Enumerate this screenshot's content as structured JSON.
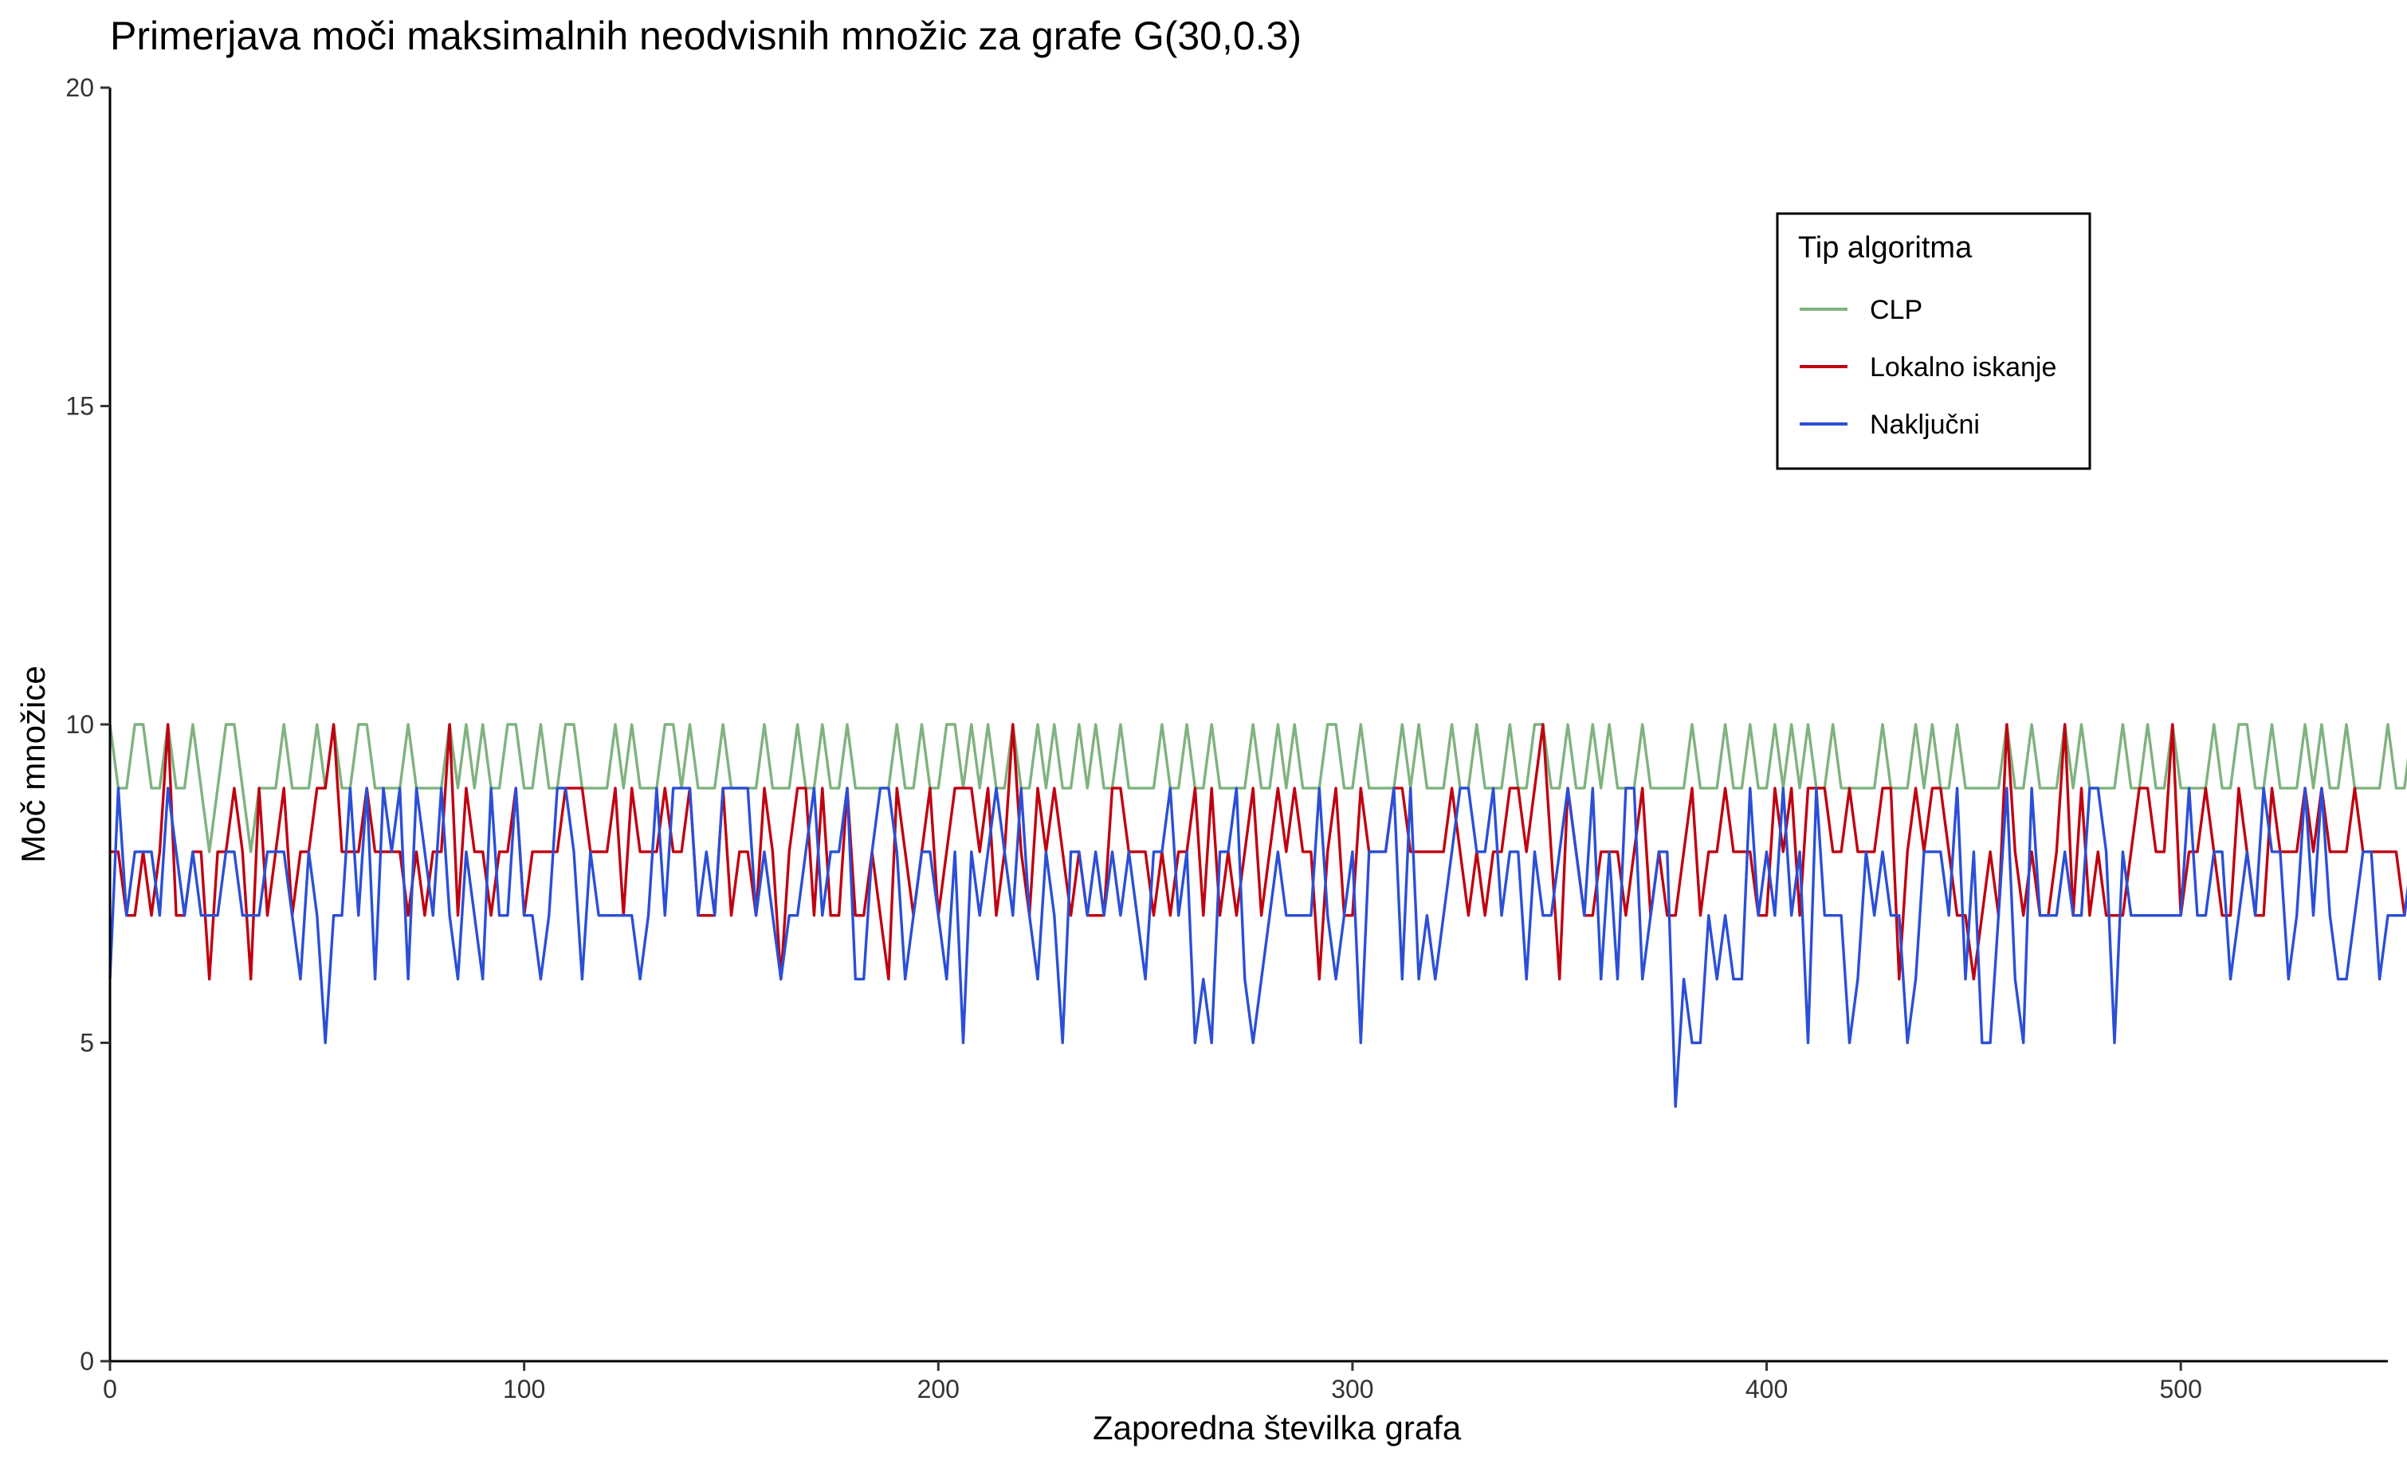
{
  "chart_data": {
    "type": "line",
    "title": "Primerjava moči maksimalnih neodvisnih množic za grafe G(30,0.3)",
    "xlabel": "Zaporedna številka grafa",
    "ylabel": "Moč množice",
    "xlim": [
      0,
      550
    ],
    "ylim": [
      0,
      20
    ],
    "x_ticks": [
      0,
      100,
      200,
      300,
      400,
      500
    ],
    "y_ticks": [
      0,
      5,
      10,
      15,
      20
    ],
    "x_tick_labels": [
      "0",
      "100",
      "200",
      "300",
      "400",
      "500"
    ],
    "y_tick_labels": [
      "0",
      "5",
      "10",
      "15",
      "20"
    ],
    "grid": false,
    "legend": {
      "title": "Tip algoritma",
      "position": "top-right"
    },
    "x_start": 0,
    "x_step": 2,
    "series": [
      {
        "name": "CLP",
        "color": "#7fb27f",
        "values": [
          10,
          9,
          9,
          10,
          10,
          9,
          9,
          10,
          9,
          9,
          10,
          9,
          8,
          9,
          10,
          10,
          9,
          8,
          9,
          9,
          9,
          10,
          9,
          9,
          9,
          10,
          9,
          10,
          9,
          9,
          10,
          10,
          9,
          9,
          9,
          9,
          10,
          9,
          9,
          9,
          9,
          10,
          9,
          10,
          9,
          10,
          9,
          9,
          10,
          10,
          9,
          9,
          10,
          9,
          9,
          10,
          10,
          9,
          9,
          9,
          9,
          10,
          9,
          10,
          9,
          9,
          9,
          10,
          10,
          9,
          10,
          9,
          9,
          9,
          10,
          9,
          9,
          9,
          9,
          10,
          9,
          9,
          9,
          10,
          9,
          9,
          10,
          9,
          9,
          10,
          9,
          9,
          9,
          9,
          9,
          10,
          9,
          9,
          10,
          9,
          9,
          10,
          10,
          9,
          10,
          9,
          10,
          9,
          9,
          10,
          9,
          9,
          10,
          9,
          10,
          9,
          9,
          10,
          9,
          10,
          9,
          9,
          10,
          9,
          9,
          9,
          9,
          10,
          9,
          9,
          10,
          9,
          9,
          10,
          9,
          9,
          9,
          9,
          10,
          9,
          9,
          10,
          9,
          10,
          9,
          9,
          9,
          10,
          10,
          9,
          9,
          10,
          9,
          9,
          9,
          9,
          10,
          9,
          10,
          9,
          9,
          9,
          10,
          9,
          9,
          10,
          9,
          9,
          9,
          10,
          9,
          9,
          10,
          10,
          9,
          9,
          10,
          9,
          9,
          10,
          9,
          10,
          9,
          9,
          9,
          10,
          9,
          9,
          9,
          9,
          9,
          10,
          9,
          9,
          9,
          10,
          9,
          9,
          10,
          9,
          9,
          10,
          9,
          10,
          9,
          10,
          9,
          9,
          10,
          9,
          9,
          9,
          9,
          9,
          10,
          9,
          9,
          9,
          10,
          9,
          10,
          9,
          9,
          10,
          9,
          9,
          9,
          9,
          9,
          10,
          9,
          9,
          10,
          9,
          9,
          9,
          10,
          9,
          10,
          9,
          9,
          9,
          9,
          10,
          9,
          9,
          10,
          9,
          9,
          10,
          9,
          9,
          9,
          9,
          10,
          9,
          9,
          10,
          10,
          9,
          9,
          10,
          9,
          9,
          9,
          10,
          9,
          10,
          9,
          9,
          10,
          9,
          9,
          9,
          9,
          10,
          9,
          9,
          10,
          9,
          9,
          9,
          10,
          9,
          9,
          9,
          9,
          10,
          9,
          9,
          10,
          9,
          9,
          10,
          9,
          9,
          9,
          10,
          10,
          9,
          9,
          10,
          9,
          9,
          9,
          9,
          9,
          10,
          9,
          9,
          10,
          9,
          9,
          9,
          9,
          10,
          9,
          9,
          10,
          10,
          9,
          9,
          10,
          9,
          9,
          9,
          10,
          9,
          9,
          9,
          9,
          10,
          9,
          9,
          10,
          9,
          9,
          9,
          10,
          9,
          9,
          10,
          9,
          9,
          9,
          9,
          10,
          9,
          9,
          10,
          9,
          10,
          9,
          9,
          9,
          10,
          9,
          9,
          9,
          10,
          9,
          9,
          10,
          9,
          9,
          9,
          10,
          9,
          10,
          9,
          9,
          9,
          10,
          9,
          9,
          10,
          10,
          9,
          9,
          9,
          9,
          10,
          9,
          9,
          10,
          9,
          9,
          9,
          9,
          10,
          9,
          9,
          10,
          9,
          9,
          10,
          9,
          9,
          10,
          9,
          9,
          10,
          9,
          9,
          9,
          9,
          10,
          9,
          9,
          10,
          9,
          9,
          9,
          10,
          9,
          9,
          10,
          10,
          9,
          9,
          9,
          10,
          9,
          9,
          10,
          9,
          9,
          9,
          9,
          10,
          9,
          9,
          10,
          10,
          9,
          9,
          10,
          9,
          9,
          10,
          9,
          9,
          9,
          9,
          10,
          9,
          10,
          9,
          9,
          9,
          10,
          9,
          9,
          10,
          9,
          9,
          10,
          9,
          9,
          9,
          10,
          9,
          10,
          9,
          9,
          10,
          9,
          9,
          9,
          9,
          9,
          10,
          9,
          9,
          9,
          10,
          9,
          9,
          10,
          9,
          9,
          10,
          9,
          9,
          9,
          10,
          10,
          9,
          9,
          10,
          9,
          9,
          10,
          9,
          9,
          9,
          10,
          9,
          9,
          10,
          9,
          10,
          9,
          9,
          9,
          10,
          9,
          9,
          10,
          9,
          9,
          9,
          10,
          9,
          10,
          9,
          10,
          9,
          9,
          9,
          10,
          9,
          9,
          10,
          9,
          9,
          9,
          9,
          10,
          9,
          10,
          10,
          9,
          9,
          10,
          10,
          9,
          9,
          10,
          9,
          9,
          9,
          10,
          9,
          9,
          9,
          10,
          10,
          9,
          9,
          10,
          9,
          9,
          10,
          9,
          9,
          10,
          9,
          9,
          9,
          9,
          10,
          9,
          9,
          10,
          9,
          10,
          9,
          9,
          10,
          9,
          9,
          9,
          10,
          10,
          9,
          10,
          9,
          9,
          9,
          10,
          9,
          10,
          9,
          9,
          10,
          9,
          9,
          9,
          9,
          10,
          9,
          9,
          10,
          9,
          10,
          9,
          10,
          9,
          9,
          10,
          9,
          9,
          9,
          10,
          9,
          9,
          10,
          10,
          9,
          9,
          10,
          9,
          9,
          9,
          10,
          9,
          10,
          9,
          10,
          9,
          9,
          9,
          10,
          9,
          9,
          10,
          9,
          9,
          10,
          9,
          9,
          9,
          10,
          9,
          9,
          10,
          10,
          9,
          9,
          10,
          9,
          9,
          9,
          10,
          9,
          9,
          10,
          9,
          10,
          9,
          9,
          10,
          9,
          9,
          9,
          10,
          10,
          9,
          9,
          10,
          9,
          9,
          10,
          9,
          9,
          10,
          9,
          10,
          9,
          9,
          9,
          10,
          9,
          9,
          10,
          9,
          9,
          10,
          9,
          9,
          10,
          9,
          9,
          10,
          9,
          9,
          9,
          9,
          10,
          9,
          9,
          10,
          9,
          9,
          10,
          9,
          9,
          9,
          9,
          9,
          10,
          10,
          9,
          9,
          10,
          10,
          9,
          9
        ]
      },
      {
        "name": "Lokalno iskanje",
        "color": "#c00010",
        "values": []
      },
      {
        "name": "Naključni",
        "color": "#2b4fd6",
        "values": []
      }
    ]
  }
}
